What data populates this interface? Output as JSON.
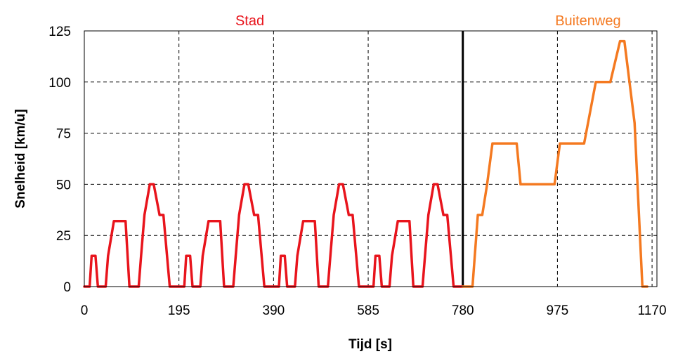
{
  "chart_data": {
    "type": "line",
    "title": "",
    "xlabel": "Tijd [s]",
    "ylabel": "Snelheid [km/u]",
    "xlim": [
      0,
      1180
    ],
    "ylim": [
      0,
      125
    ],
    "x_ticks": [
      0,
      195,
      390,
      585,
      780,
      975,
      1170
    ],
    "y_ticks": [
      0,
      25,
      50,
      75,
      100,
      125
    ],
    "x_tick_labels": [
      "0",
      "195",
      "390",
      "585",
      "780",
      "975",
      "1170"
    ],
    "y_tick_labels": [
      "0",
      "25",
      "50",
      "75",
      "100",
      "125"
    ],
    "grid": true,
    "grid_style": "dashed",
    "divider_x": 780,
    "regions": [
      {
        "label": "Stad",
        "color": "#e8141c",
        "label_x": 341
      },
      {
        "label": "Buitenweg",
        "color": "#f47920",
        "label_x": 1038
      }
    ],
    "series": [
      {
        "region": "Stad",
        "color": "#e8141c",
        "x": [
          0,
          11,
          15,
          23,
          28,
          44,
          49,
          61,
          85,
          93,
          112,
          117,
          124,
          135,
          143,
          155,
          163,
          176,
          188,
          206,
          210,
          218,
          223,
          239,
          244,
          256,
          280,
          288,
          307,
          312,
          319,
          330,
          338,
          350,
          358,
          371,
          383,
          401,
          405,
          413,
          418,
          434,
          439,
          451,
          475,
          483,
          502,
          507,
          514,
          525,
          533,
          545,
          553,
          566,
          578,
          596,
          600,
          608,
          613,
          629,
          634,
          646,
          670,
          678,
          697,
          702,
          709,
          720,
          728,
          740,
          748,
          761,
          780
        ],
        "y": [
          0,
          0,
          15,
          15,
          0,
          0,
          15,
          32,
          32,
          0,
          0,
          15,
          35,
          50,
          50,
          35,
          35,
          0,
          0,
          0,
          15,
          15,
          0,
          0,
          15,
          32,
          32,
          0,
          0,
          15,
          35,
          50,
          50,
          35,
          35,
          0,
          0,
          0,
          15,
          15,
          0,
          0,
          15,
          32,
          32,
          0,
          0,
          15,
          35,
          50,
          50,
          35,
          35,
          0,
          0,
          0,
          15,
          15,
          0,
          0,
          15,
          32,
          32,
          0,
          0,
          15,
          35,
          50,
          50,
          35,
          35,
          0,
          0
        ]
      },
      {
        "region": "Buitenweg",
        "color": "#f47920",
        "x": [
          780,
          800,
          811,
          820,
          830,
          841,
          891,
          899,
          969,
          980,
          1030,
          1054,
          1084,
          1104,
          1113,
          1134,
          1150,
          1160
        ],
        "y": [
          0,
          0,
          35,
          35,
          50,
          70,
          70,
          50,
          50,
          70,
          70,
          100,
          100,
          120,
          120,
          80,
          0,
          0
        ]
      }
    ]
  }
}
